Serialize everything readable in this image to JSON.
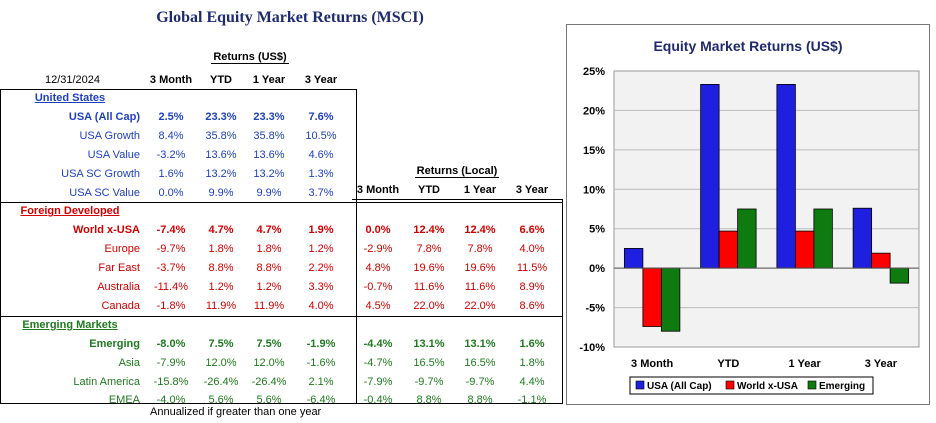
{
  "title": "Global Equity Market Returns (MSCI)",
  "date": "12/31/2024",
  "returns_usd_label": "Returns (US$)",
  "returns_local_label": "Returns (Local)",
  "periods": [
    "3 Month",
    "YTD",
    "1 Year",
    "3 Year"
  ],
  "footnote": "Annualized if greater than one year",
  "colors": {
    "us": "#1f3fbf",
    "dev": "#d00000",
    "em": "#1f7a1f",
    "blue_fill": "#1f1fe0",
    "red_fill": "#ff0000",
    "green_fill": "#0f7a0f"
  },
  "sections": [
    {
      "name": "United States",
      "color": "#1f3fbf",
      "rows": [
        {
          "label": "USA (All Cap)",
          "bold": true,
          "usd": [
            "2.5%",
            "23.3%",
            "23.3%",
            "7.6%"
          ],
          "local": []
        },
        {
          "label": "USA Growth",
          "bold": false,
          "usd": [
            "8.4%",
            "35.8%",
            "35.8%",
            "10.5%"
          ],
          "local": []
        },
        {
          "label": "USA Value",
          "bold": false,
          "usd": [
            "-3.2%",
            "13.6%",
            "13.6%",
            "4.6%"
          ],
          "local": []
        },
        {
          "label": "USA SC Growth",
          "bold": false,
          "usd": [
            "1.6%",
            "13.2%",
            "13.2%",
            "1.3%"
          ],
          "local": []
        },
        {
          "label": "USA SC Value",
          "bold": false,
          "usd": [
            "0.0%",
            "9.9%",
            "9.9%",
            "3.7%"
          ],
          "local": []
        }
      ]
    },
    {
      "name": "Foreign Developed",
      "color": "#d00000",
      "rows": [
        {
          "label": "World x-USA",
          "bold": true,
          "usd": [
            "-7.4%",
            "4.7%",
            "4.7%",
            "1.9%"
          ],
          "local": [
            "0.0%",
            "12.4%",
            "12.4%",
            "6.6%"
          ]
        },
        {
          "label": "Europe",
          "bold": false,
          "usd": [
            "-9.7%",
            "1.8%",
            "1.8%",
            "1.2%"
          ],
          "local": [
            "-2.9%",
            "7.8%",
            "7.8%",
            "4.0%"
          ]
        },
        {
          "label": "Far East",
          "bold": false,
          "usd": [
            "-3.7%",
            "8.8%",
            "8.8%",
            "2.2%"
          ],
          "local": [
            "4.8%",
            "19.6%",
            "19.6%",
            "11.5%"
          ]
        },
        {
          "label": "Australia",
          "bold": false,
          "usd": [
            "-11.4%",
            "1.2%",
            "1.2%",
            "3.3%"
          ],
          "local": [
            "-0.7%",
            "11.6%",
            "11.6%",
            "8.9%"
          ]
        },
        {
          "label": "Canada",
          "bold": false,
          "usd": [
            "-1.8%",
            "11.9%",
            "11.9%",
            "4.0%"
          ],
          "local": [
            "4.5%",
            "22.0%",
            "22.0%",
            "8.6%"
          ]
        }
      ]
    },
    {
      "name": "Emerging Markets",
      "color": "#1f7a1f",
      "rows": [
        {
          "label": "Emerging",
          "bold": true,
          "usd": [
            "-8.0%",
            "7.5%",
            "7.5%",
            "-1.9%"
          ],
          "local": [
            "-4.4%",
            "13.1%",
            "13.1%",
            "1.6%"
          ]
        },
        {
          "label": "Asia",
          "bold": false,
          "usd": [
            "-7.9%",
            "12.0%",
            "12.0%",
            "-1.6%"
          ],
          "local": [
            "-4.7%",
            "16.5%",
            "16.5%",
            "1.8%"
          ]
        },
        {
          "label": "Latin America",
          "bold": false,
          "usd": [
            "-15.8%",
            "-26.4%",
            "-26.4%",
            "2.1%"
          ],
          "local": [
            "-7.9%",
            "-9.7%",
            "-9.7%",
            "4.4%"
          ]
        },
        {
          "label": "EMEA",
          "bold": false,
          "usd": [
            "-4.0%",
            "5.6%",
            "5.6%",
            "-6.4%"
          ],
          "local": [
            "-0.4%",
            "8.8%",
            "8.8%",
            "-1.1%"
          ]
        }
      ]
    }
  ],
  "chart_data": {
    "type": "bar",
    "title": "Equity Market Returns (US$)",
    "categories": [
      "3 Month",
      "YTD",
      "1 Year",
      "3 Year"
    ],
    "series": [
      {
        "name": "USA (All Cap)",
        "values": [
          2.5,
          23.3,
          23.3,
          7.6
        ],
        "color": "#1f1fe0"
      },
      {
        "name": "World x-USA",
        "values": [
          -7.4,
          4.7,
          4.7,
          1.9
        ],
        "color": "#ff0000"
      },
      {
        "name": "Emerging",
        "values": [
          -8.0,
          7.5,
          7.5,
          -1.9
        ],
        "color": "#0f7a0f"
      }
    ],
    "ylim": [
      -10,
      25
    ],
    "yticks": [
      "-10%",
      "-5%",
      "0%",
      "5%",
      "10%",
      "15%",
      "20%",
      "25%"
    ],
    "grid": true,
    "legend": "bottom"
  }
}
